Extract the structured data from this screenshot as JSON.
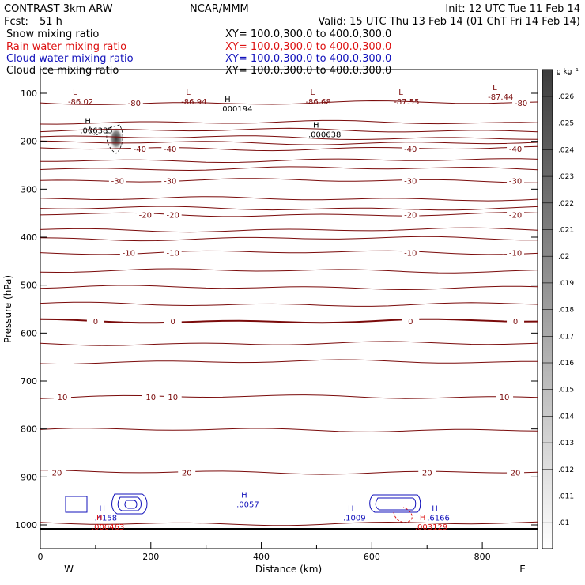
{
  "header": {
    "model": "CONTRAST  3km ARW",
    "center": "NCAR/MMM",
    "init": "Init: 12 UTC Tue 11 Feb 14",
    "fcst_label": "Fcst:",
    "fcst_value": "51 h",
    "valid": "Valid: 15 UTC Thu 13 Feb 14 (01 ChT Fri 14 Feb 14)"
  },
  "fields": [
    {
      "name": "Snow mixing ratio",
      "xy": "XY= 100.0,300.0 to 400.0,300.0",
      "color": "#000000"
    },
    {
      "name": "Rain water mixing ratio",
      "xy": "XY= 100.0,300.0 to 400.0,300.0",
      "color": "#dd1111"
    },
    {
      "name": "Cloud water mixing ratio",
      "xy": "XY= 100.0,300.0 to 400.0,300.0",
      "color": "#1111bb"
    },
    {
      "name": "Cloud ice mixing ratio",
      "xy": "XY= 100.0,300.0 to 400.0,300.0",
      "color": "#000000"
    }
  ],
  "chart_data": {
    "type": "cross-section contour",
    "xlabel": "Distance (km)",
    "ylabel": "Pressure (hPa)",
    "xlim": [
      0,
      900
    ],
    "ylim": [
      1045,
      65
    ],
    "x_ticks": [
      0,
      200,
      400,
      600,
      800
    ],
    "y_ticks": [
      100,
      200,
      300,
      400,
      500,
      600,
      700,
      800,
      900,
      1000
    ],
    "endpoints": {
      "left": "W",
      "right": "E"
    },
    "temperature_contours": {
      "color": "#7a0a0a",
      "levels": [
        {
          "p": [
            120,
            120
          ],
          "label": "-80",
          "label_x": [
            170,
            870
          ]
        },
        {
          "p": [
            160,
            162
          ]
        },
        {
          "p": [
            177,
            178
          ]
        },
        {
          "p": [
            192,
            193
          ]
        },
        {
          "p": [
            203,
            203
          ]
        },
        {
          "p": [
            215,
            215
          ],
          "label": "-40",
          "label_x": [
            180,
            235,
            670,
            860
          ]
        },
        {
          "p": [
            240,
            240
          ]
        },
        {
          "p": [
            257,
            257
          ]
        },
        {
          "p": [
            282,
            282
          ],
          "label": "-30",
          "label_x": [
            140,
            235,
            670,
            860
          ]
        },
        {
          "p": [
            320,
            320
          ]
        },
        {
          "p": [
            340,
            340
          ]
        },
        {
          "p": [
            353,
            353
          ],
          "label": "-20",
          "label_x": [
            190,
            240,
            670,
            860
          ]
        },
        {
          "p": [
            385,
            385
          ]
        },
        {
          "p": [
            403,
            403
          ]
        },
        {
          "p": [
            432,
            432
          ],
          "label": "-10",
          "label_x": [
            160,
            240,
            670,
            860
          ]
        },
        {
          "p": [
            470,
            470
          ]
        },
        {
          "p": [
            505,
            505
          ]
        },
        {
          "p": [
            540,
            540
          ]
        },
        {
          "p": [
            575,
            575
          ],
          "label": "0",
          "label_x": [
            100,
            240,
            670,
            860
          ]
        },
        {
          "p": [
            622,
            622
          ]
        },
        {
          "p": [
            660,
            660
          ]
        },
        {
          "p": [
            733,
            733
          ],
          "label": "10",
          "label_x": [
            40,
            200,
            240,
            840
          ]
        },
        {
          "p": [
            802,
            802
          ]
        },
        {
          "p": [
            890,
            890
          ],
          "label": "20",
          "label_x": [
            30,
            265,
            700,
            860
          ]
        },
        {
          "p": [
            997,
            997
          ]
        }
      ]
    },
    "extrema": [
      {
        "type": "L",
        "value": "-86.02",
        "x": 50,
        "p": 110,
        "color": "#7a0a0a"
      },
      {
        "type": "L",
        "value": "-86.94",
        "x": 255,
        "p": 110,
        "color": "#7a0a0a"
      },
      {
        "type": "L",
        "value": "-86.68",
        "x": 480,
        "p": 110,
        "color": "#7a0a0a"
      },
      {
        "type": "L",
        "value": "-87.55",
        "x": 640,
        "p": 110,
        "color": "#7a0a0a"
      },
      {
        "type": "L",
        "value": "-87.44",
        "x": 810,
        "p": 100,
        "color": "#7a0a0a"
      },
      {
        "type": "H",
        "value": ".000194",
        "x": 325,
        "p": 125,
        "color": "#000000"
      },
      {
        "type": "H",
        "value": ".006385",
        "x": 72,
        "p": 170,
        "color": "#000000"
      },
      {
        "type": "H",
        "value": ".000638",
        "x": 485,
        "p": 178,
        "color": "#000000"
      },
      {
        "type": "H",
        "value": ".0057",
        "x": 355,
        "p": 950,
        "color": "#1111bb"
      },
      {
        "type": "H",
        "value": ".4158",
        "x": 98,
        "p": 978,
        "color": "#1111bb"
      },
      {
        "type": "H",
        "value": ".1009",
        "x": 548,
        "p": 978,
        "color": "#1111bb"
      },
      {
        "type": "H",
        "value": ".6166",
        "x": 700,
        "p": 978,
        "color": "#1111bb"
      },
      {
        "type": "H",
        "value": ".000463",
        "x": 93,
        "p": 997,
        "color": "#dd1111"
      },
      {
        "type": "H",
        "value": ".003129",
        "x": 678,
        "p": 997,
        "color": "#dd1111"
      }
    ],
    "colorbar": {
      "unit": "g kg⁻¹",
      "tick_labels": [
        ".026",
        ".025",
        ".024",
        ".023",
        ".022",
        ".021",
        ".02",
        ".019",
        ".018",
        ".017",
        ".016",
        ".015",
        ".014",
        ".013",
        ".012",
        ".011",
        ".01"
      ],
      "top_color": "#3c3c3c",
      "bottom_color": "#ffffff"
    }
  }
}
